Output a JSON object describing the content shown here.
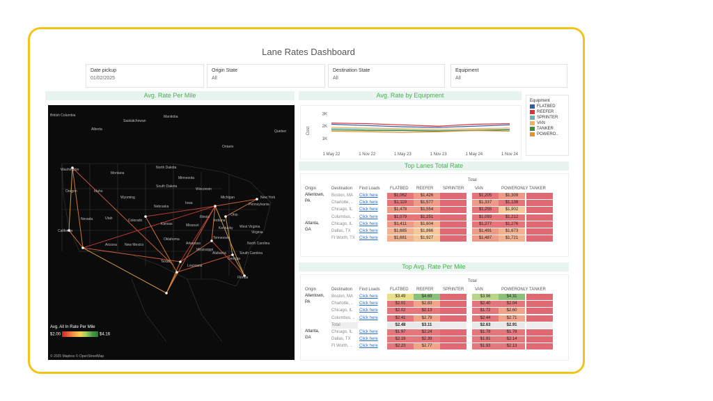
{
  "dashboard": {
    "title": "Lane Rates Dashboard"
  },
  "filters": [
    {
      "label": "Date pickup",
      "value": "01/02/2025"
    },
    {
      "label": "Origin State",
      "value": "All"
    },
    {
      "label": "Destination State",
      "value": "All"
    },
    {
      "label": "Equipment",
      "value": "All"
    }
  ],
  "map": {
    "title": "Avg. Rate Per Mile",
    "labels": [
      "British Columbia",
      "Saskatchewan",
      "Manitoba",
      "Alberta",
      "Quebec",
      "Ontario",
      "Washington",
      "Montana",
      "North Dakota",
      "Minnesota",
      "Oregon",
      "Idaho",
      "South Dakota",
      "Wisconsin",
      "Michigan",
      "New York",
      "Wyoming",
      "Nebraska",
      "Iowa",
      "Nevada",
      "Utah",
      "Colorado",
      "Kansas",
      "Missouri",
      "Illinois",
      "Indiana",
      "Ohio",
      "Pennsylvania",
      "California",
      "Kentucky",
      "West Virginia",
      "Virginia",
      "Arizona",
      "New Mexico",
      "Oklahoma",
      "Arkansas",
      "Tennessee",
      "North Carolina",
      "South Carolina",
      "Mississippi",
      "Alabama",
      "Georgia",
      "Texas",
      "Louisiana",
      "Florida"
    ],
    "legend_title": "Avg. All In Rate Per Mile",
    "legend_min": "$2.00",
    "legend_max": "$4.16",
    "copyright": "© 2025 Mapbox © OpenStreetMap"
  },
  "equipment_chart": {
    "title": "Avg. Rate by Equipment",
    "ylabel": "Cost",
    "yticks": [
      "3K",
      "2K",
      "1K"
    ],
    "xticks": [
      "1 May 22",
      "1 Nov 22",
      "1 May 23",
      "1 Nov 23",
      "1 May 24",
      "1 Nov 24"
    ]
  },
  "chart_data": {
    "type": "line",
    "xlabel": "",
    "ylabel": "Cost",
    "ylim": [
      500,
      3300
    ],
    "x": [
      "1 May 22",
      "1 Nov 22",
      "1 May 23",
      "1 Nov 23",
      "1 May 24",
      "1 Nov 24"
    ],
    "series": [
      {
        "name": "FLATBED",
        "values": [
          2150,
          2050,
          1950,
          1900,
          2000,
          2100
        ]
      },
      {
        "name": "REEFER",
        "values": [
          2250,
          2200,
          2100,
          2000,
          2150,
          2200
        ]
      },
      {
        "name": "SPRINTER",
        "values": [
          1800,
          1750,
          1700,
          1650,
          1700,
          1750
        ]
      },
      {
        "name": "VAN",
        "values": [
          1900,
          1850,
          1800,
          1750,
          1800,
          1850
        ]
      },
      {
        "name": "TANKER",
        "values": [
          1700,
          1650,
          1650,
          1600,
          1650,
          1700
        ]
      },
      {
        "name": "POWERO...",
        "values": [
          1600,
          1550,
          1500,
          1550,
          1650,
          1600
        ]
      }
    ]
  },
  "equipment_legend": {
    "title": "Equipment",
    "items": [
      {
        "label": "FLATBED",
        "color": "#2f5ea6"
      },
      {
        "label": "REEFER",
        "color": "#d9343a"
      },
      {
        "label": "SPRINTER",
        "color": "#6bb3b0"
      },
      {
        "label": "VAN",
        "color": "#f0b55a"
      },
      {
        "label": "TANKER",
        "color": "#3f8a3e"
      },
      {
        "label": "POWERO..",
        "color": "#e7912a"
      }
    ]
  },
  "top_lanes": {
    "title": "Top Lanes Total Rate",
    "group_header": "Total",
    "columns": [
      "Origin",
      "Destination",
      "Find Loads",
      "FLATBED",
      "REEFER",
      "SPRINTER",
      "VAN",
      "POWERONLY",
      "TANKER"
    ],
    "rows": [
      {
        "origin": "Allentown,",
        "origin2": "PA",
        "dest": "Boston, MA",
        "link": "Click here",
        "flatbed": "$1,062",
        "reefer": "$1,426",
        "van": "$1,205",
        "power": "$1,309"
      },
      {
        "origin": "",
        "origin2": "",
        "dest": "Charlotte, ..",
        "link": "Click here",
        "flatbed": "$1,119",
        "reefer": "$1,577",
        "van": "$1,337",
        "power": "$1,138"
      },
      {
        "origin": "",
        "origin2": "",
        "dest": "Chicago, IL",
        "link": "Click here",
        "flatbed": "$1,478",
        "reefer": "$1,554",
        "van": "$1,255",
        "power": "$1,902"
      },
      {
        "origin": "",
        "origin2": "",
        "dest": "Columbus, ..",
        "link": "Click here",
        "flatbed": "$1,079",
        "reefer": "$1,251",
        "van": "$1,093",
        "power": "$1,212"
      },
      {
        "origin": "Atlanta,",
        "origin2": "GA",
        "dest": "Chicago, IL",
        "link": "Click here",
        "flatbed": "$1,411",
        "reefer": "$1,604",
        "van": "$1,277",
        "power": "$1,276"
      },
      {
        "origin": "",
        "origin2": "",
        "dest": "Dallas, TX",
        "link": "Click here",
        "flatbed": "$1,685",
        "reefer": "$1,866",
        "van": "$1,491",
        "power": "$1,673"
      },
      {
        "origin": "",
        "origin2": "",
        "dest": "Ft Worth, TX",
        "link": "Click here",
        "flatbed": "$1,681",
        "reefer": "$1,927",
        "van": "$1,487",
        "power": "$1,721"
      }
    ]
  },
  "top_rpm": {
    "title": "Top Avg. Rate Per Mile",
    "group_header": "Total",
    "columns": [
      "Origin",
      "Destination",
      "Find Loads",
      "FLATBED",
      "REEFER",
      "SPRINTER",
      "VAN",
      "POWERONLY",
      "TANKER"
    ],
    "rows": [
      {
        "origin": "Allentown,",
        "origin2": "PA",
        "dest": "Boston, MA",
        "link": "Click here",
        "flatbed": "$3.49",
        "reefer": "$4.69",
        "van": "$3.96",
        "power": "$4.31"
      },
      {
        "origin": "",
        "origin2": "",
        "dest": "Charlotte, ..",
        "link": "Click here",
        "flatbed": "$2.01",
        "reefer": "$2.83",
        "van": "$2.40",
        "power": "$2.04"
      },
      {
        "origin": "",
        "origin2": "",
        "dest": "Chicago, IL",
        "link": "Click here",
        "flatbed": "$2.02",
        "reefer": "$2.13",
        "van": "$1.72",
        "power": "$2.60"
      },
      {
        "origin": "",
        "origin2": "",
        "dest": "Columbus, ..",
        "link": "Click here",
        "flatbed": "$2.41",
        "reefer": "$2.79",
        "van": "$2.44",
        "power": "$2.71"
      },
      {
        "origin": "",
        "origin2": "",
        "dest": "Total",
        "link": "",
        "flatbed": "$2.48",
        "reefer": "$3.11",
        "van": "$2.63",
        "power": "$2.91"
      },
      {
        "origin": "Atlanta,",
        "origin2": "GA",
        "dest": "Chicago, IL",
        "link": "Click here",
        "flatbed": "$1.97",
        "reefer": "$2.24",
        "van": "$1.78",
        "power": "$1.78"
      },
      {
        "origin": "",
        "origin2": "",
        "dest": "Dallas, TX",
        "link": "Click here",
        "flatbed": "$2.16",
        "reefer": "$2.39",
        "van": "$1.91",
        "power": "$2.14"
      },
      {
        "origin": "",
        "origin2": "",
        "dest": "Ft Worth, ..",
        "link": "Click here",
        "flatbed": "$2.23",
        "reefer": "$2.77",
        "van": "$1.93",
        "power": "$2.13"
      }
    ]
  }
}
